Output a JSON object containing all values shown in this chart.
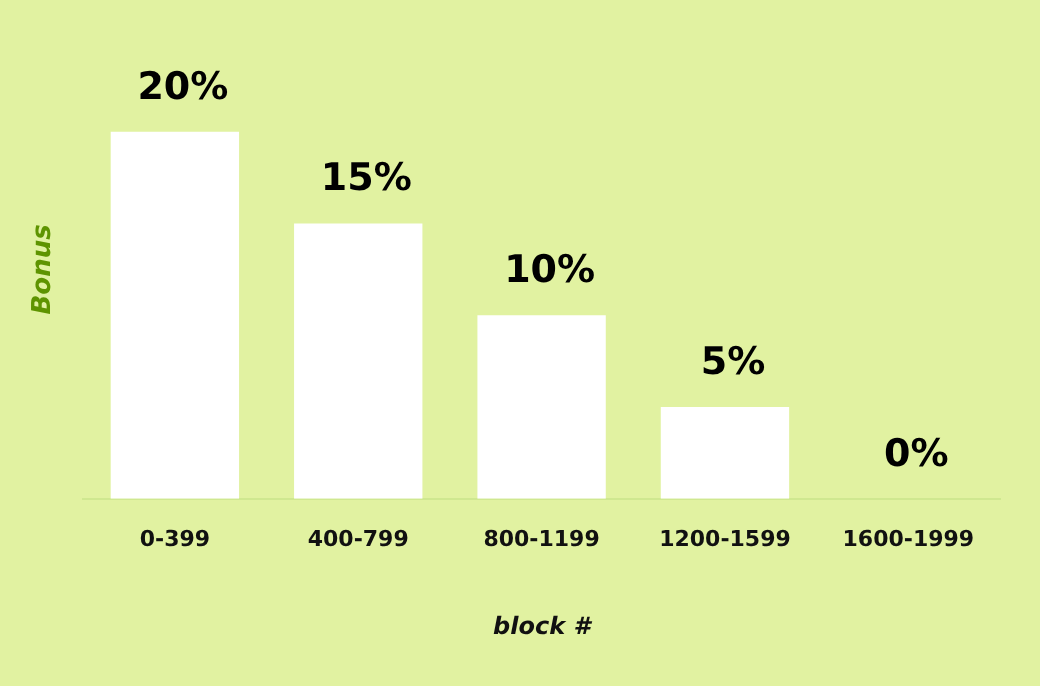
{
  "chart_data": {
    "type": "bar",
    "xlabel": "block #",
    "ylabel": "Bonus",
    "categories": [
      "0-399",
      "400-799",
      "800-1199",
      "1200-1599",
      "1600-1999"
    ],
    "values": [
      20,
      15,
      10,
      5,
      0
    ],
    "value_labels": [
      "20%",
      "15%",
      "10%",
      "5%",
      "0%"
    ],
    "color": "#ffffff",
    "tick_labels": "x",
    "grid": false,
    "legend": false
  }
}
